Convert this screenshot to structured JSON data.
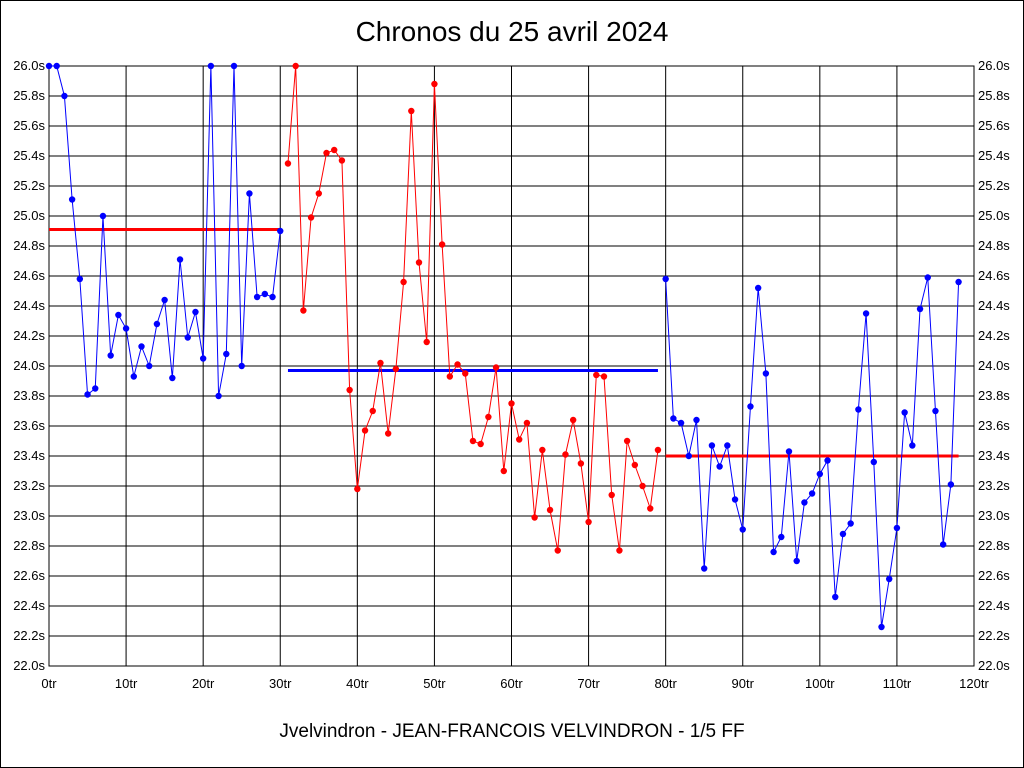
{
  "chart_data": {
    "type": "line",
    "title": "Chronos du 25 avril 2024",
    "footer": "Jvelvindron - JEAN-FRANCOIS VELVINDRON - 1/5 FF",
    "xlim": [
      0,
      120
    ],
    "ylim": [
      22.0,
      26.0
    ],
    "x_tick_values": [
      0,
      10,
      20,
      30,
      40,
      50,
      60,
      70,
      80,
      90,
      100,
      110,
      120
    ],
    "x_tick_labels": [
      "0tr",
      "10tr",
      "20tr",
      "30tr",
      "40tr",
      "50tr",
      "60tr",
      "70tr",
      "80tr",
      "90tr",
      "100tr",
      "110tr",
      "120tr"
    ],
    "y_tick_values": [
      22.0,
      22.2,
      22.4,
      22.6,
      22.8,
      23.0,
      23.2,
      23.4,
      23.6,
      23.8,
      24.0,
      24.2,
      24.4,
      24.6,
      24.8,
      25.0,
      25.2,
      25.4,
      25.6,
      25.8,
      26.0
    ],
    "y_tick_labels": [
      "22.0s",
      "22.2s",
      "22.4s",
      "22.6s",
      "22.8s",
      "23.0s",
      "23.2s",
      "23.4s",
      "23.6s",
      "23.8s",
      "24.0s",
      "24.2s",
      "24.4s",
      "24.6s",
      "24.8s",
      "25.0s",
      "25.2s",
      "25.4s",
      "25.6s",
      "25.8s",
      "26.0s"
    ],
    "grid": true,
    "series": [
      {
        "color": "#0000ff",
        "x": [
          0,
          1,
          2,
          3,
          4,
          5,
          6,
          7,
          8,
          9,
          10,
          11,
          12,
          13,
          14,
          15,
          16,
          17,
          18,
          19,
          20,
          21,
          22,
          23,
          24,
          25,
          26,
          27,
          28,
          29,
          30
        ],
        "values": [
          26.0,
          26.0,
          25.8,
          25.11,
          24.58,
          23.81,
          23.85,
          25.0,
          24.07,
          24.34,
          24.25,
          23.93,
          24.13,
          24.0,
          24.28,
          24.44,
          23.92,
          24.71,
          24.19,
          24.36,
          24.05,
          26.0,
          23.8,
          24.08,
          26.0,
          24.0,
          25.15,
          24.46,
          24.48,
          24.46,
          24.9
        ]
      },
      {
        "color": "#ff0000",
        "x": [
          31,
          32,
          33,
          34,
          35,
          36,
          37,
          38,
          39,
          40,
          41,
          42,
          43,
          44,
          45,
          46,
          47,
          48,
          49,
          50,
          51,
          52,
          53,
          54,
          55,
          56,
          57,
          58,
          59,
          60,
          61,
          62,
          63,
          64,
          65,
          66,
          67,
          68,
          69,
          70,
          71,
          72,
          73,
          74,
          75,
          76,
          77,
          78,
          79
        ],
        "values": [
          25.35,
          26.0,
          24.37,
          24.99,
          25.15,
          25.42,
          25.44,
          25.37,
          23.84,
          23.18,
          23.57,
          23.7,
          24.02,
          23.55,
          23.98,
          24.56,
          25.7,
          24.69,
          24.16,
          25.88,
          24.81,
          23.93,
          24.01,
          23.95,
          23.5,
          23.48,
          23.66,
          23.99,
          23.3,
          23.75,
          23.51,
          23.62,
          22.99,
          23.44,
          23.04,
          22.77,
          23.41,
          23.64,
          23.35,
          22.96,
          23.94,
          23.93,
          23.14,
          22.77,
          23.5,
          23.34,
          23.2,
          23.05,
          23.44
        ]
      },
      {
        "color": "#0000ff",
        "x": [
          80,
          81,
          82,
          83,
          84,
          85,
          86,
          87,
          88,
          89,
          90,
          91,
          92,
          93,
          94,
          95,
          96,
          97,
          98,
          99,
          100,
          101,
          102,
          103,
          104,
          105,
          106,
          107,
          108,
          109,
          110,
          111,
          112,
          113,
          114,
          115,
          116,
          117,
          118
        ],
        "values": [
          24.58,
          23.65,
          23.62,
          23.4,
          23.64,
          22.65,
          23.47,
          23.33,
          23.47,
          23.11,
          22.91,
          23.73,
          24.52,
          23.95,
          22.76,
          22.86,
          23.43,
          22.7,
          23.09,
          23.15,
          23.28,
          23.37,
          22.46,
          22.88,
          22.95,
          23.71,
          24.35,
          23.36,
          22.26,
          22.58,
          22.92,
          23.69,
          23.47,
          24.38,
          24.59,
          23.7,
          22.81,
          23.21,
          24.56
        ]
      }
    ],
    "average_lines": [
      {
        "color": "#ff0000",
        "x_range": [
          0,
          30
        ],
        "value": 24.91
      },
      {
        "color": "#0000ff",
        "x_range": [
          31,
          79
        ],
        "value": 23.97
      },
      {
        "color": "#ff0000",
        "x_range": [
          80,
          118
        ],
        "value": 23.4
      }
    ]
  }
}
